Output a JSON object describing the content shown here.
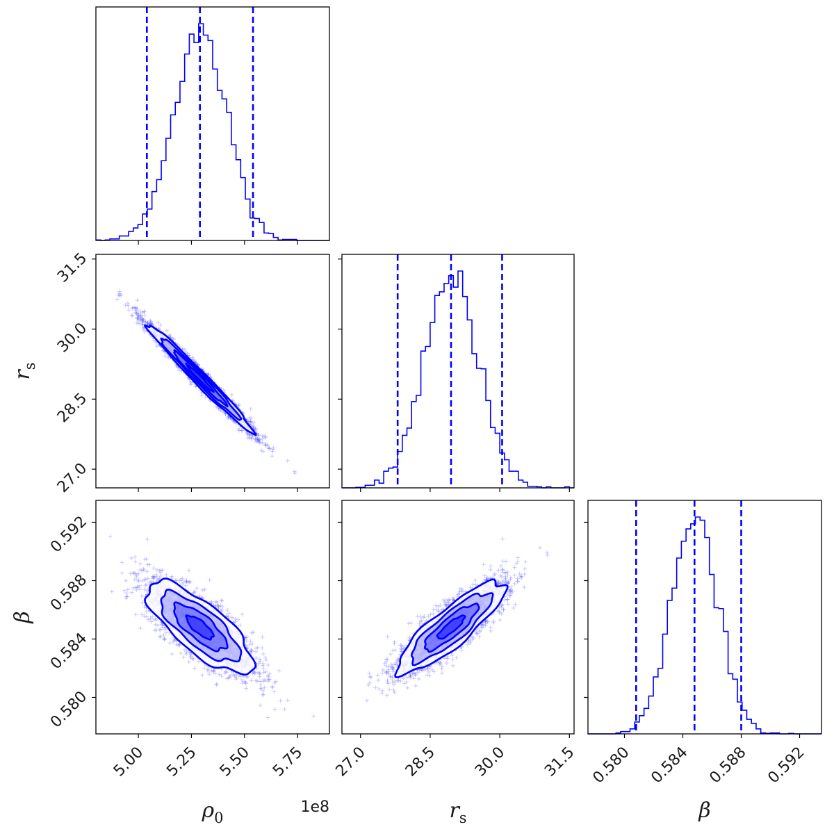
{
  "chart_data": {
    "type": "corner",
    "color": "#0000ff",
    "parameters": [
      {
        "label": "ρ0",
        "display_label": "ρ",
        "subscript": "0",
        "range": [
          480000000.0,
          590000000.0
        ],
        "ticks": [
          500000000.0,
          525000000.0,
          550000000.0,
          575000000.0
        ],
        "tick_labels": [
          "5.00",
          "5.25",
          "5.50",
          "5.75"
        ],
        "offset_text": "1e8",
        "quantiles": [
          504000000.0,
          529000000.0,
          554000000.0
        ]
      },
      {
        "label": "r_s",
        "display_label": "r",
        "subscript": "s",
        "range": [
          26.6,
          31.6
        ],
        "ticks": [
          27.0,
          28.5,
          30.0,
          31.5
        ],
        "tick_labels": [
          "27.0",
          "28.5",
          "30.0",
          "31.5"
        ],
        "quantiles": [
          27.8,
          28.95,
          30.05
        ]
      },
      {
        "label": "β",
        "display_label": "β",
        "subscript": "",
        "range": [
          0.5775,
          0.5935
        ],
        "ticks": [
          0.58,
          0.584,
          0.588,
          0.592
        ],
        "tick_labels": [
          "0.580",
          "0.584",
          "0.588",
          "0.592"
        ],
        "quantiles": [
          0.5808,
          0.5848,
          0.588
        ]
      }
    ],
    "marginals": [
      {
        "parameter": "ρ0",
        "mean": 529000000.0,
        "sd": 12500000.0
      },
      {
        "parameter": "r_s",
        "mean": 28.95,
        "sd": 0.58
      },
      {
        "parameter": "β",
        "mean": 0.5848,
        "sd": 0.00158
      }
    ],
    "correlations": [
      {
        "x": "ρ0",
        "y": "r_s",
        "rho": -0.985
      },
      {
        "x": "ρ0",
        "y": "β",
        "rho": -0.76
      },
      {
        "x": "r_s",
        "y": "β",
        "rho": 0.86
      }
    ],
    "contour_levels_sigma": [
      0.5,
      1.0,
      1.5,
      2.0
    ]
  }
}
